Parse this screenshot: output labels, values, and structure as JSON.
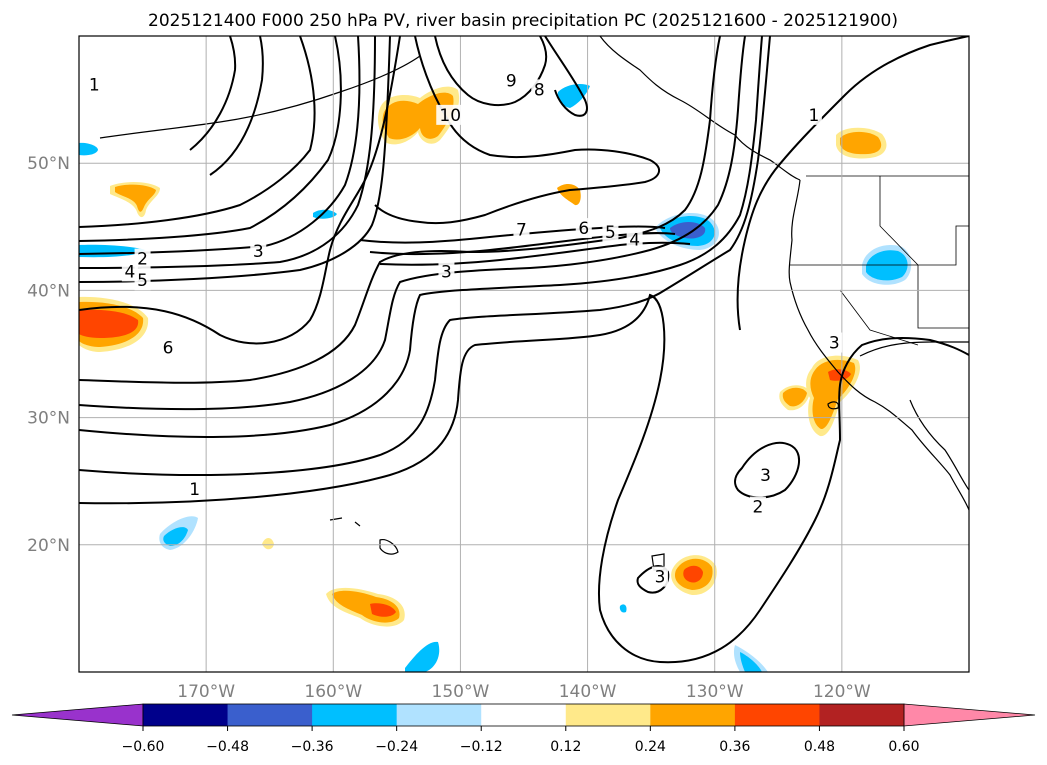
{
  "title": "2025121400 F000 250 hPa PV, river basin precipitation PC (2025121600 - 2025121900)",
  "map": {
    "lon_range": [
      -180,
      -110
    ],
    "lat_range": [
      10,
      60
    ],
    "lon_ticks": [
      {
        "lon": -170,
        "label": "170°W"
      },
      {
        "lon": -160,
        "label": "160°W"
      },
      {
        "lon": -150,
        "label": "150°W"
      },
      {
        "lon": -140,
        "label": "140°W"
      },
      {
        "lon": -130,
        "label": "130°W"
      },
      {
        "lon": -120,
        "label": "120°W"
      }
    ],
    "lat_ticks": [
      {
        "lat": 50,
        "label": "50°N"
      },
      {
        "lat": 40,
        "label": "40°N"
      },
      {
        "lat": 30,
        "label": "30°N"
      },
      {
        "lat": 20,
        "label": "20°N"
      }
    ],
    "gridlines": true,
    "pv_contour_color": "#000000",
    "pv_contour_labels": [
      {
        "text": "1",
        "lon": -178.8,
        "lat": 56.2
      },
      {
        "text": "10",
        "lon": -150.8,
        "lat": 53.8
      },
      {
        "text": "9",
        "lon": -146.0,
        "lat": 56.5
      },
      {
        "text": "8",
        "lon": -143.8,
        "lat": 55.8
      },
      {
        "text": "1",
        "lon": -122.2,
        "lat": 53.8
      },
      {
        "text": "2",
        "lon": -175.0,
        "lat": 42.5
      },
      {
        "text": "3",
        "lon": -165.9,
        "lat": 43.1
      },
      {
        "text": "4",
        "lon": -176.0,
        "lat": 41.5
      },
      {
        "text": "5",
        "lon": -175.0,
        "lat": 40.8
      },
      {
        "text": "7",
        "lon": -145.2,
        "lat": 44.8
      },
      {
        "text": "6",
        "lon": -140.3,
        "lat": 44.9
      },
      {
        "text": "5",
        "lon": -138.2,
        "lat": 44.6
      },
      {
        "text": "4",
        "lon": -136.3,
        "lat": 44.0
      },
      {
        "text": "3",
        "lon": -151.1,
        "lat": 41.5
      },
      {
        "text": "6",
        "lon": -173.0,
        "lat": 35.5
      },
      {
        "text": "3",
        "lon": -120.6,
        "lat": 35.9
      },
      {
        "text": "1",
        "lon": -170.9,
        "lat": 24.4
      },
      {
        "text": "3",
        "lon": -126.0,
        "lat": 25.5
      },
      {
        "text": "2",
        "lon": -126.6,
        "lat": 23.0
      },
      {
        "text": "3",
        "lon": -134.3,
        "lat": 17.5
      }
    ]
  },
  "colorbar": {
    "boundaries": [
      -0.6,
      -0.48,
      -0.36,
      -0.24,
      -0.12,
      0.12,
      0.24,
      0.36,
      0.48,
      0.6
    ],
    "tick_labels": [
      "−0.60",
      "−0.48",
      "−0.36",
      "−0.24",
      "−0.12",
      "0.12",
      "0.24",
      "0.36",
      "0.48",
      "0.60"
    ],
    "under_color": "#9932cc",
    "over_color": "#ff88a8",
    "colors": [
      "#00008b",
      "#3a5fcd",
      "#00bfff",
      "#b0e2ff",
      "#ffffff",
      "#ffe98a",
      "#ffa500",
      "#ff4500",
      "#b22222"
    ]
  },
  "chart_data": {
    "type": "heatmap",
    "title": "2025121400 F000 250 hPa PV, river basin precipitation PC (2025121600 - 2025121900)",
    "xlabel": "",
    "ylabel": "",
    "xlim": [
      -180,
      -110
    ],
    "ylim": [
      10,
      60
    ],
    "x_tick_labels": [
      "170°W",
      "160°W",
      "150°W",
      "140°W",
      "130°W",
      "120°W"
    ],
    "y_tick_labels": [
      "50°N",
      "40°N",
      "30°N",
      "20°N"
    ],
    "colorbar_ticks": [
      -0.6,
      -0.48,
      -0.36,
      -0.24,
      -0.12,
      0.12,
      0.24,
      0.36,
      0.48,
      0.6
    ],
    "grid": true,
    "pv_contour_levels": [
      1,
      2,
      3,
      4,
      5,
      6,
      7,
      8,
      9,
      10
    ],
    "shaded_regions": [
      {
        "lon": -178.0,
        "lat": 38.0,
        "value": 0.42
      },
      {
        "lon": -174.0,
        "lat": 48.0,
        "value": 0.3
      },
      {
        "lon": -177.0,
        "lat": 42.8,
        "value": -0.3
      },
      {
        "lon": -180.0,
        "lat": 51.0,
        "value": -0.3
      },
      {
        "lon": -158.5,
        "lat": 46.0,
        "value": -0.3
      },
      {
        "lon": -152.0,
        "lat": 54.0,
        "value": 0.3
      },
      {
        "lon": -141.5,
        "lat": 47.5,
        "value": 0.3
      },
      {
        "lon": -142.0,
        "lat": 57.5,
        "value": -0.3
      },
      {
        "lon": -132.0,
        "lat": 44.5,
        "value": -0.38
      },
      {
        "lon": -116.5,
        "lat": 42.0,
        "value": -0.32
      },
      {
        "lon": -118.0,
        "lat": 51.5,
        "value": 0.3
      },
      {
        "lon": -120.0,
        "lat": 32.5,
        "value": 0.33
      },
      {
        "lon": -124.0,
        "lat": 31.5,
        "value": 0.28
      },
      {
        "lon": -131.0,
        "lat": 17.5,
        "value": 0.38
      },
      {
        "lon": -157.5,
        "lat": 15.0,
        "value": 0.36
      },
      {
        "lon": -165.5,
        "lat": 20.0,
        "value": 0.2
      },
      {
        "lon": -169.0,
        "lat": 21.0,
        "value": -0.3
      },
      {
        "lon": -150.0,
        "lat": 11.0,
        "value": -0.3
      },
      {
        "lon": -126.0,
        "lat": 11.0,
        "value": -0.24
      }
    ]
  }
}
